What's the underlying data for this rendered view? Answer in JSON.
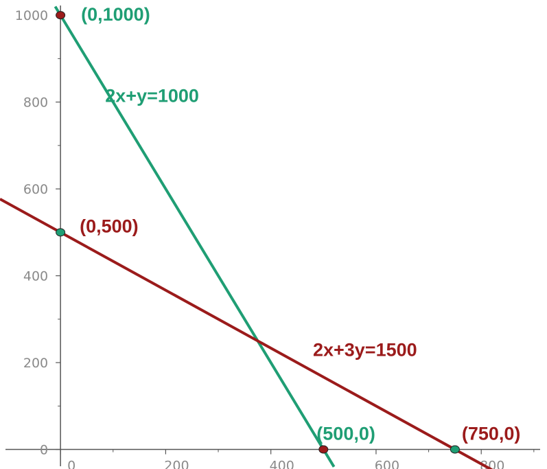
{
  "chart_data": {
    "type": "line",
    "title": "",
    "xlabel": "",
    "ylabel": "",
    "xlim": [
      -115,
      925
    ],
    "ylim": [
      -45,
      1035
    ],
    "grid": false,
    "x_ticks": [
      0,
      200,
      400,
      600,
      800
    ],
    "y_ticks": [
      0,
      200,
      400,
      600,
      800,
      1000
    ],
    "x_tick_labels": [
      "0",
      "200",
      "400",
      "600",
      "800"
    ],
    "y_tick_labels": [
      "0",
      "200",
      "400",
      "600",
      "800",
      "1000"
    ],
    "colors": {
      "green": "#1f9e74",
      "red": "#9b1b1b",
      "axis": "#555555",
      "tick_text": "#8a8a8a"
    },
    "series": [
      {
        "name": "2x+y=1000",
        "color": "#1f9e74",
        "x": [
          -10,
          520
        ],
        "y": [
          1020,
          -40
        ]
      },
      {
        "name": "2x+3y=1500",
        "color": "#9b1b1b",
        "x": [
          -115,
          840
        ],
        "y": [
          576.67,
          -60
        ]
      }
    ],
    "points": [
      {
        "label": "(0,1000)",
        "x": 0,
        "y": 1000,
        "fill": "#9b1b1b",
        "label_color": "#1f9e74"
      },
      {
        "label": "(0,500)",
        "x": 0,
        "y": 500,
        "fill": "#1f9e74",
        "label_color": "#9b1b1b"
      },
      {
        "label": "(500,0)",
        "x": 500,
        "y": 0,
        "fill": "#9b1b1b",
        "label_color": "#1f9e74"
      },
      {
        "label": "(750,0)",
        "x": 750,
        "y": 0,
        "fill": "#1f9e74",
        "label_color": "#9b1b1b"
      }
    ]
  }
}
